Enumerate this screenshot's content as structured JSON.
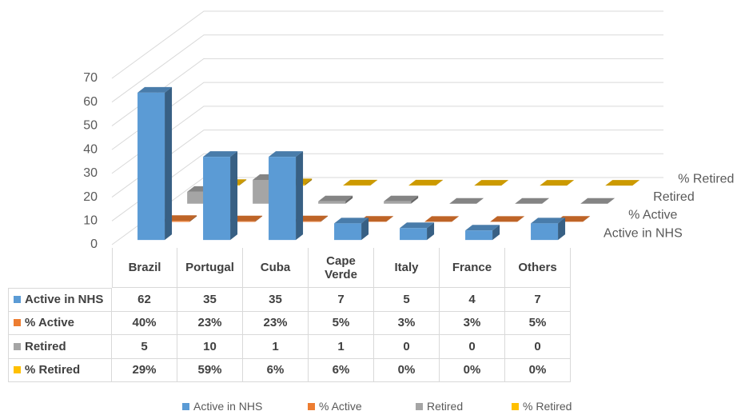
{
  "chart_data": {
    "type": "bar3d",
    "categories": [
      "Brazil",
      "Portugal",
      "Cuba",
      "Cape Verde",
      "Italy",
      "France",
      "Others"
    ],
    "series": [
      {
        "name": "Active in NHS",
        "color": "#5b9bd5",
        "values": [
          62,
          35,
          35,
          7,
          5,
          4,
          7
        ]
      },
      {
        "name": "% Active",
        "color": "#ed7d31",
        "values": [
          0.4,
          0.23,
          0.23,
          0.05,
          0.03,
          0.03,
          0.05
        ],
        "value_labels": [
          "40%",
          "23%",
          "23%",
          "5%",
          "3%",
          "3%",
          "5%"
        ]
      },
      {
        "name": "Retired",
        "color": "#a5a5a5",
        "values": [
          5,
          10,
          1,
          1,
          0,
          0,
          0
        ]
      },
      {
        "name": "% Retired",
        "color": "#ffc000",
        "values": [
          0.29,
          0.59,
          0.06,
          0.06,
          0,
          0,
          0
        ],
        "value_labels": [
          "29%",
          "59%",
          "6%",
          "6%",
          "0%",
          "0%",
          "0%"
        ]
      }
    ],
    "ylim": [
      0,
      70
    ],
    "yticks": [
      0,
      10,
      20,
      30,
      40,
      50,
      60,
      70
    ],
    "grid": true,
    "data_table": true,
    "legend": "bottom"
  }
}
